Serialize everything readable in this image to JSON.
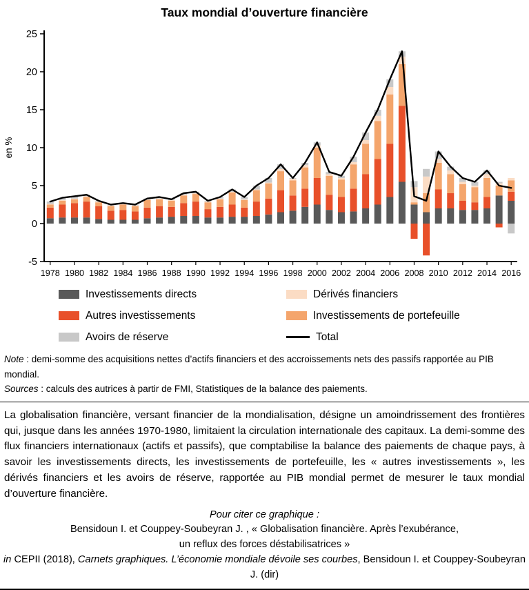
{
  "title": "Taux mondial d’ouverture financière",
  "chart_data": {
    "type": "bar",
    "stacked": true,
    "title": "Taux mondial d’ouverture financière",
    "xlabel": "",
    "ylabel": "en %",
    "ylim": [
      -5,
      25
    ],
    "yticks": [
      -5,
      0,
      5,
      10,
      15,
      20,
      25
    ],
    "grid": false,
    "legend_position": "bottom",
    "years": [
      1978,
      1979,
      1980,
      1981,
      1982,
      1983,
      1984,
      1985,
      1986,
      1987,
      1988,
      1989,
      1990,
      1991,
      1992,
      1993,
      1994,
      1995,
      1996,
      1997,
      1998,
      1999,
      2000,
      2001,
      2002,
      2003,
      2004,
      2005,
      2006,
      2007,
      2008,
      2009,
      2010,
      2011,
      2012,
      2013,
      2014,
      2015,
      2016
    ],
    "xtick_years": [
      1978,
      1980,
      1982,
      1984,
      1986,
      1988,
      1990,
      1992,
      1994,
      1996,
      1998,
      2000,
      2002,
      2004,
      2006,
      2008,
      2010,
      2012,
      2014,
      2016
    ],
    "series": [
      {
        "name": "Investissements directs",
        "color": "#595959",
        "values": [
          0.7,
          0.8,
          0.8,
          0.8,
          0.6,
          0.5,
          0.5,
          0.5,
          0.7,
          0.8,
          0.9,
          1.0,
          1.0,
          0.8,
          0.8,
          0.9,
          0.9,
          1.0,
          1.2,
          1.5,
          1.7,
          2.2,
          2.5,
          1.8,
          1.5,
          1.6,
          2.0,
          2.5,
          3.5,
          5.5,
          2.5,
          1.5,
          2.0,
          2.0,
          1.8,
          1.8,
          2.0,
          3.7,
          3.0
        ]
      },
      {
        "name": "Autres investissements",
        "color": "#e8502a",
        "values": [
          1.4,
          1.7,
          1.9,
          2.1,
          1.7,
          1.2,
          1.3,
          1.1,
          1.4,
          1.5,
          1.3,
          1.7,
          1.9,
          1.1,
          1.4,
          1.6,
          1.2,
          1.9,
          2.1,
          2.9,
          2.0,
          2.4,
          3.5,
          2.0,
          2.0,
          3.0,
          4.5,
          6.0,
          7.0,
          10.0,
          -2.0,
          -4.2,
          2.5,
          2.0,
          1.2,
          1.0,
          1.5,
          -0.5,
          1.2
        ]
      },
      {
        "name": "Investissements de portefeuille",
        "color": "#f4a56c",
        "values": [
          0.4,
          0.5,
          0.5,
          0.6,
          0.5,
          0.6,
          0.7,
          0.7,
          1.0,
          0.9,
          0.8,
          1.0,
          1.0,
          0.9,
          1.0,
          1.6,
          1.0,
          1.5,
          2.0,
          2.5,
          2.0,
          2.8,
          4.0,
          2.5,
          2.3,
          3.2,
          4.0,
          5.0,
          6.5,
          5.5,
          0.3,
          2.5,
          3.5,
          2.5,
          2.2,
          2.0,
          2.5,
          1.3,
          1.5
        ]
      },
      {
        "name": "Dérivés financiers",
        "color": "#fbdcc4",
        "values": [
          0.1,
          0.1,
          0.1,
          0.1,
          0.1,
          0.1,
          0.1,
          0.1,
          0.1,
          0.1,
          0.1,
          0.1,
          0.1,
          0.1,
          0.1,
          0.1,
          0.1,
          0.1,
          0.1,
          0.3,
          0.2,
          0.3,
          0.3,
          0.2,
          0.2,
          0.3,
          0.5,
          0.7,
          1.0,
          1.0,
          2.0,
          2.2,
          0.5,
          0.5,
          0.3,
          0.2,
          0.5,
          0.3,
          0.3
        ]
      },
      {
        "name": "Avoirs de réserve",
        "color": "#c8c8c8",
        "values": [
          0.3,
          0.3,
          0.3,
          0.2,
          0.1,
          0.1,
          0.1,
          0.1,
          0.1,
          0.2,
          0.1,
          0.2,
          0.2,
          0.1,
          0.2,
          0.3,
          0.3,
          0.5,
          0.6,
          0.6,
          0.1,
          0.3,
          0.4,
          0.3,
          0.3,
          0.7,
          1.0,
          0.8,
          1.0,
          0.7,
          0.8,
          1.0,
          1.0,
          0.5,
          0.5,
          0.5,
          0.5,
          0.2,
          -1.3
        ]
      }
    ],
    "line_series": {
      "name": "Total",
      "color": "#000000",
      "note": "line values equal the sum of stacked series per year"
    }
  },
  "legend": {
    "left": [
      {
        "label": "Investissements directs",
        "color": "#595959",
        "type": "box"
      },
      {
        "label": "Autres investissements",
        "color": "#e8502a",
        "type": "box"
      },
      {
        "label": "Avoirs de réserve",
        "color": "#c8c8c8",
        "type": "box"
      }
    ],
    "right": [
      {
        "label": "Dérivés financiers",
        "color": "#fbdcc4",
        "type": "box"
      },
      {
        "label": "Investissements de portefeuille",
        "color": "#f4a56c",
        "type": "box"
      },
      {
        "label": "Total",
        "color": "#000000",
        "type": "line"
      }
    ]
  },
  "notes": {
    "note_label": "Note",
    "note_text": " : demi-somme des acquisitions nettes d’actifs financiers et des accroissements nets des passifs rapportée au PIB mondial.",
    "sources_label": "Sources",
    "sources_text": " : calculs des autrices à partir de FMI, Statistiques de la balance des paiements."
  },
  "paragraph": "La globalisation financière, versant financier de la mondialisation, désigne un amoindrissement des frontières qui, jusque dans les années 1970-1980, limitaient la circulation internationale des capitaux. La demi-somme des flux financiers internationaux (actifs et passifs), que comptabilise la balance des paiements de chaque pays, à savoir les investissements directs, les investissements de portefeuille, les « autres investissements », les dérivés financiers et les avoirs de réserve, rapportée au PIB mondial permet de mesurer le taux mondial d’ouverture financière.",
  "citation": {
    "intro": "Pour citer ce graphique :",
    "line1": "Bensidoun I. et Couppey-Soubeyran J. , « Globalisation financière. Après l’exubérance,",
    "line2": "un reflux des forces déstabilisatrices »",
    "line3_in": "in",
    "line3_normal": " CEPII (2018), ",
    "line3_italic": "Carnets graphiques. L’économie mondiale dévoile ses courbes",
    "line3_end": ", Bensidoun I. et Couppey-Soubeyran J. (dir)"
  }
}
